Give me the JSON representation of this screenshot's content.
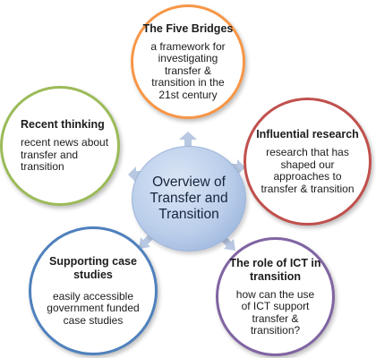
{
  "center": {
    "label": "Overview of Transfer and Transition"
  },
  "nodes": [
    {
      "id": "five-bridges",
      "title": "The Five Bridges",
      "body": "a framework for investigating transfer & transition in the 21st century",
      "border_color": "#f79646"
    },
    {
      "id": "influential-research",
      "title": "Influential research",
      "body": "research that has shaped our approaches to transfer & transition",
      "border_color": "#c0504d"
    },
    {
      "id": "role-of-ict",
      "title": "The role of ICT in transition",
      "body": "how can the use of ICT support transfer & transition?",
      "border_color": "#8064a2"
    },
    {
      "id": "supporting-case-studies",
      "title": "Supporting case studies",
      "body": "easily accessible government funded case studies",
      "border_color": "#4f81bd"
    },
    {
      "id": "recent-thinking",
      "title": "Recent thinking",
      "body": "recent news about transfer and transition",
      "border_color": "#9bbb59"
    }
  ],
  "colors": {
    "arrow": "#b8c8e2",
    "center_fill": "#b9cdea"
  }
}
